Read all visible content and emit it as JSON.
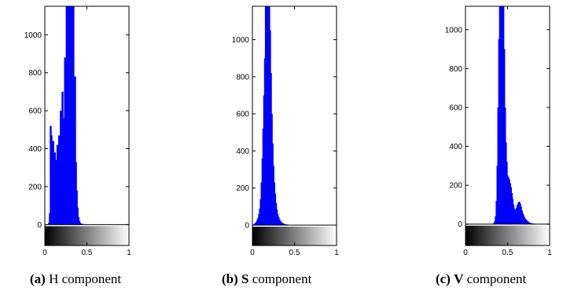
{
  "chart_data": [
    {
      "type": "bar",
      "panel_label": "(a)",
      "caption_bold": "",
      "caption_text": "H component",
      "colorbar": "grayscale",
      "bar_color": "#0000ff",
      "xlim": [
        0,
        1
      ],
      "ylim": [
        -110,
        1150
      ],
      "xticks": [
        "0",
        "0.5",
        "1"
      ],
      "yticks": [
        "0",
        "200",
        "400",
        "600",
        "800",
        "1000"
      ],
      "xticks_values": [
        0,
        0.5,
        1
      ],
      "yticks_values": [
        0,
        200,
        400,
        600,
        800,
        1000
      ],
      "x": [
        0.05,
        0.06,
        0.07,
        0.08,
        0.09,
        0.1,
        0.11,
        0.12,
        0.13,
        0.14,
        0.15,
        0.16,
        0.17,
        0.18,
        0.19,
        0.2,
        0.21,
        0.22,
        0.23,
        0.24,
        0.25,
        0.26,
        0.27,
        0.28,
        0.29,
        0.3,
        0.31,
        0.32,
        0.33,
        0.34,
        0.35,
        0.36,
        0.37,
        0.38,
        0.39,
        0.4,
        0.41,
        0.42,
        0.43,
        0.44,
        0.45,
        0.46,
        0.47,
        0.48,
        0.49,
        0.5
      ],
      "values": [
        10,
        60,
        520,
        470,
        300,
        440,
        250,
        380,
        180,
        340,
        420,
        260,
        470,
        320,
        600,
        500,
        700,
        350,
        560,
        880,
        760,
        1150,
        820,
        1150,
        960,
        1150,
        800,
        1150,
        900,
        1150,
        640,
        780,
        330,
        180,
        90,
        40,
        20,
        10,
        6,
        4,
        3,
        2,
        2,
        1,
        1,
        1
      ]
    },
    {
      "type": "bar",
      "panel_label": "(b)",
      "caption_bold": "S",
      "caption_text": "component",
      "colorbar": "grayscale",
      "bar_color": "#0000ff",
      "xlim": [
        0,
        1
      ],
      "ylim": [
        -110,
        1180
      ],
      "xticks": [
        "0",
        "0.5",
        "1"
      ],
      "yticks": [
        "0",
        "200",
        "400",
        "600",
        "800",
        "1000"
      ],
      "xticks_values": [
        0,
        0.5,
        1
      ],
      "yticks_values": [
        0,
        200,
        400,
        600,
        800,
        1000
      ],
      "x": [
        0.01,
        0.02,
        0.03,
        0.04,
        0.05,
        0.06,
        0.07,
        0.08,
        0.09,
        0.1,
        0.11,
        0.12,
        0.13,
        0.14,
        0.15,
        0.16,
        0.17,
        0.18,
        0.19,
        0.2,
        0.21,
        0.22,
        0.23,
        0.24,
        0.25,
        0.26,
        0.27,
        0.28,
        0.29,
        0.3,
        0.31,
        0.32,
        0.33,
        0.34,
        0.35,
        0.36,
        0.37,
        0.38,
        0.39,
        0.4,
        0.41,
        0.42,
        0.43,
        0.44,
        0.45,
        0.46,
        0.47,
        0.48,
        0.49,
        0.5
      ],
      "values": [
        3,
        5,
        8,
        12,
        18,
        28,
        40,
        60,
        90,
        140,
        230,
        360,
        520,
        700,
        900,
        1180,
        1180,
        1180,
        1180,
        1180,
        1050,
        820,
        600,
        440,
        320,
        230,
        170,
        120,
        85,
        60,
        45,
        32,
        24,
        18,
        14,
        10,
        8,
        6,
        5,
        4,
        3,
        3,
        2,
        2,
        1,
        1,
        1,
        1,
        1,
        0
      ]
    },
    {
      "type": "bar",
      "panel_label": "(c)",
      "caption_bold": "V",
      "caption_text": "component",
      "colorbar": "grayscale",
      "bar_color": "#0000ff",
      "xlim": [
        0,
        1
      ],
      "ylim": [
        -110,
        1120
      ],
      "xticks": [
        "0",
        "0.5",
        "1"
      ],
      "yticks": [
        "0",
        "200",
        "400",
        "600",
        "800",
        "1000"
      ],
      "xticks_values": [
        0,
        0.5,
        1
      ],
      "yticks_values": [
        0,
        200,
        400,
        600,
        800,
        1000
      ],
      "x": [
        0.34,
        0.35,
        0.36,
        0.37,
        0.38,
        0.39,
        0.4,
        0.41,
        0.42,
        0.43,
        0.44,
        0.45,
        0.46,
        0.47,
        0.48,
        0.49,
        0.5,
        0.51,
        0.52,
        0.53,
        0.54,
        0.55,
        0.56,
        0.57,
        0.58,
        0.59,
        0.6,
        0.61,
        0.62,
        0.63,
        0.64,
        0.65,
        0.66,
        0.67,
        0.68,
        0.69,
        0.7,
        0.71,
        0.72,
        0.73,
        0.74,
        0.75,
        0.76,
        0.77,
        0.78,
        0.79,
        0.8,
        0.81,
        0.82,
        0.83,
        0.84,
        0.85
      ],
      "values": [
        5,
        15,
        40,
        120,
        300,
        600,
        950,
        1120,
        1120,
        1120,
        1120,
        1120,
        900,
        600,
        420,
        320,
        250,
        240,
        230,
        210,
        190,
        160,
        130,
        100,
        80,
        70,
        75,
        85,
        100,
        110,
        115,
        105,
        90,
        70,
        55,
        45,
        35,
        28,
        22,
        18,
        14,
        10,
        8,
        6,
        5,
        4,
        3,
        2,
        2,
        1,
        1,
        0
      ]
    }
  ]
}
